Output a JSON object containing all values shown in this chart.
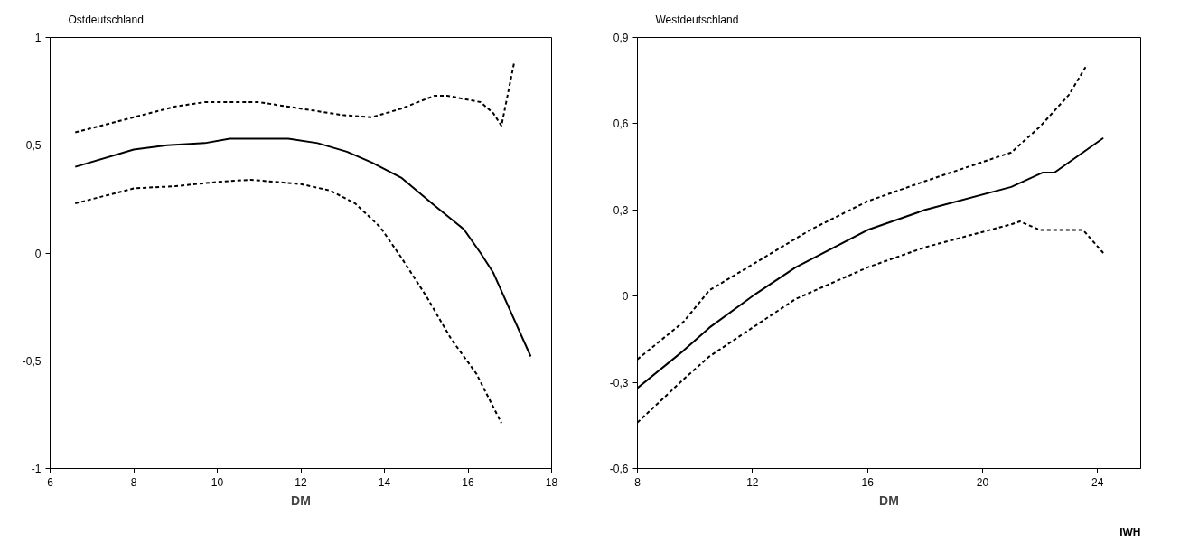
{
  "chart_data": [
    {
      "type": "line",
      "title": "Ostdeutschland",
      "xlabel": "DM",
      "xlim": [
        6,
        18
      ],
      "xticks": [
        6,
        8,
        10,
        12,
        14,
        16,
        18
      ],
      "ylim": [
        -1,
        1
      ],
      "yticks": [
        -1,
        {
          "value": -0.5,
          "label": "-0,5"
        },
        0,
        {
          "value": 0.5,
          "label": "0,5"
        },
        1
      ],
      "grid": false,
      "series": [
        {
          "color": "#000000",
          "line_style": "solid",
          "x": [
            6.6,
            8,
            8.8,
            9.7,
            10.3,
            11.7,
            12.4,
            13.1,
            13.7,
            14.4,
            15.2,
            15.9,
            16.3,
            16.6,
            17.5
          ],
          "values": [
            0.4,
            0.48,
            0.5,
            0.51,
            0.53,
            0.53,
            0.51,
            0.47,
            0.42,
            0.35,
            0.22,
            0.11,
            0.0,
            -0.09,
            -0.48
          ]
        },
        {
          "color": "#000000",
          "line_style": "dashed",
          "x": [
            6.6,
            8,
            9,
            9.7,
            11,
            12,
            13,
            13.7,
            14.4,
            15.2,
            15.5,
            16.3,
            16.6,
            16.8,
            17.1
          ],
          "values": [
            0.56,
            0.63,
            0.68,
            0.7,
            0.7,
            0.67,
            0.64,
            0.63,
            0.67,
            0.73,
            0.73,
            0.7,
            0.65,
            0.59,
            0.88
          ]
        },
        {
          "color": "#000000",
          "line_style": "dashed",
          "x": [
            6.6,
            8,
            9,
            10,
            10.8,
            12,
            12.7,
            13.3,
            13.9,
            14.4,
            15,
            15.6,
            16.2,
            16.8
          ],
          "values": [
            0.23,
            0.3,
            0.31,
            0.33,
            0.34,
            0.32,
            0.29,
            0.23,
            0.12,
            -0.02,
            -0.2,
            -0.4,
            -0.56,
            -0.79
          ]
        }
      ]
    },
    {
      "type": "line",
      "title": "Westdeutschland",
      "xlabel": "DM",
      "xlim": [
        8,
        25.5
      ],
      "xticks": [
        8,
        12,
        16,
        20,
        24
      ],
      "ylim": [
        -0.6,
        0.9
      ],
      "yticks": [
        {
          "value": -0.6,
          "label": "-0,6"
        },
        {
          "value": -0.3,
          "label": "-0,3"
        },
        0,
        {
          "value": 0.3,
          "label": "0,3"
        },
        {
          "value": 0.6,
          "label": "0,6"
        },
        {
          "value": 0.9,
          "label": "0,9"
        }
      ],
      "grid": false,
      "annotations": [
        "IWH"
      ],
      "series": [
        {
          "color": "#000000",
          "line_style": "solid",
          "x": [
            8,
            9.6,
            10.5,
            12,
            13.5,
            16,
            18,
            21,
            22.1,
            22.5,
            24.2
          ],
          "values": [
            -0.32,
            -0.19,
            -0.11,
            0.0,
            0.1,
            0.23,
            0.3,
            0.38,
            0.43,
            0.43,
            0.55
          ]
        },
        {
          "color": "#000000",
          "line_style": "dashed",
          "x": [
            8,
            9.6,
            10.5,
            12,
            14,
            16,
            18,
            21,
            22,
            23,
            23.6
          ],
          "values": [
            -0.22,
            -0.09,
            0.02,
            0.11,
            0.23,
            0.33,
            0.4,
            0.5,
            0.59,
            0.7,
            0.8
          ]
        },
        {
          "color": "#000000",
          "line_style": "dashed",
          "x": [
            8,
            9.6,
            10.5,
            12,
            13.5,
            16,
            18,
            21,
            21.3,
            22,
            23.5,
            24.2
          ],
          "values": [
            -0.44,
            -0.29,
            -0.21,
            -0.11,
            -0.01,
            0.1,
            0.17,
            0.25,
            0.26,
            0.23,
            0.23,
            0.15
          ]
        }
      ]
    }
  ]
}
